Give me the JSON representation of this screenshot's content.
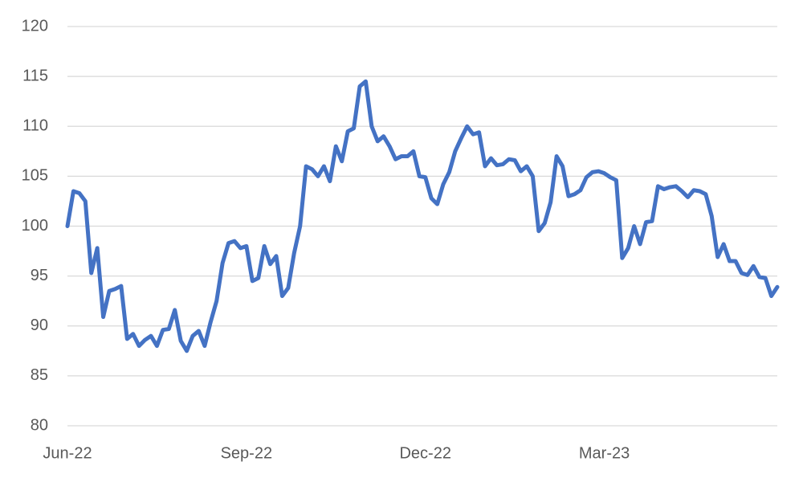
{
  "chart_data": {
    "type": "line",
    "categories": [
      "Jun-22",
      null,
      null,
      null,
      null,
      null,
      null,
      null,
      null,
      null,
      null,
      null,
      null,
      null,
      null,
      null,
      null,
      null,
      null,
      null,
      null,
      null,
      null,
      null,
      null,
      null,
      null,
      null,
      null,
      null,
      "Sep-22",
      null,
      null,
      null,
      null,
      null,
      null,
      null,
      null,
      null,
      null,
      null,
      null,
      null,
      null,
      null,
      null,
      null,
      null,
      null,
      null,
      null,
      null,
      null,
      null,
      null,
      null,
      null,
      null,
      null,
      "Dec-22",
      null,
      null,
      null,
      null,
      null,
      null,
      null,
      null,
      null,
      null,
      null,
      null,
      null,
      null,
      null,
      null,
      null,
      null,
      null,
      null,
      null,
      null,
      null,
      null,
      null,
      null,
      null,
      null,
      null,
      "Mar-23",
      null,
      null,
      null,
      null,
      null,
      null,
      null,
      null,
      null,
      null,
      null,
      null,
      null,
      null,
      null,
      null,
      null,
      null,
      null,
      null,
      null,
      null,
      null,
      null,
      null,
      null,
      null,
      null,
      null
    ],
    "values": [
      100,
      103.5,
      103.3,
      102.5,
      95.3,
      97.8,
      90.9,
      93.5,
      93.7,
      94,
      88.7,
      89.2,
      88,
      88.6,
      89,
      88,
      89.6,
      89.7,
      91.6,
      88.5,
      87.5,
      89,
      89.5,
      88,
      90.4,
      92.5,
      96.3,
      98.3,
      98.5,
      97.8,
      98,
      94.5,
      94.8,
      98,
      96.2,
      97,
      93,
      93.8,
      97.3,
      100,
      106,
      105.7,
      105,
      106,
      104.5,
      108,
      106.5,
      109.5,
      109.8,
      114,
      114.5,
      110,
      108.5,
      109,
      108,
      106.7,
      107,
      107,
      107.5,
      105,
      104.9,
      102.8,
      102.2,
      104.2,
      105.4,
      107.5,
      108.8,
      110,
      109.2,
      109.4,
      106,
      106.8,
      106.1,
      106.2,
      106.7,
      106.6,
      105.5,
      106,
      105,
      99.5,
      100.3,
      102.4,
      107,
      106,
      103,
      103.2,
      103.6,
      104.9,
      105.4,
      105.5,
      105.3,
      104.9,
      104.6,
      96.8,
      97.8,
      100,
      98.2,
      100.4,
      100.5,
      104,
      103.7,
      103.9,
      104,
      103.5,
      102.9,
      103.6,
      103.5,
      103.2,
      101,
      96.9,
      98.2,
      96.5,
      96.5,
      95.3,
      95.1,
      96,
      94.9,
      94.8,
      93,
      93.9
    ],
    "color": "#4472c4",
    "ylim": [
      80,
      120
    ],
    "yticks": [
      80,
      85,
      90,
      95,
      100,
      105,
      110,
      115,
      120
    ],
    "grid": true
  }
}
